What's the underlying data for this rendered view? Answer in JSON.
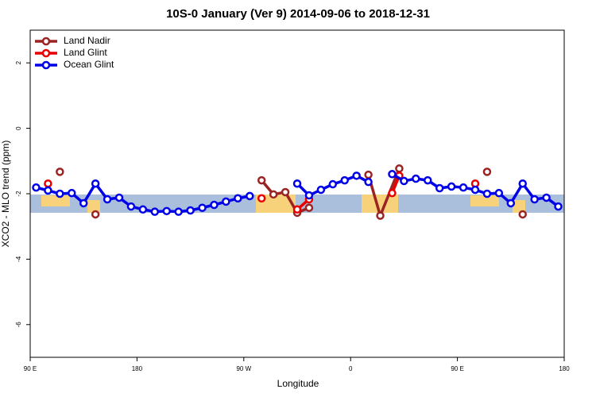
{
  "chart_data": {
    "type": "line",
    "title": "10S-0 January (Ver 9)   2014-09-06 to 2018-12-31",
    "x_label": "Longitude",
    "y_label": "XCO2 - MLO trend (ppm)",
    "xlim": [
      90,
      540
    ],
    "ylim": [
      -7,
      3
    ],
    "xticks": [
      {
        "value": 90,
        "label": "90 E"
      },
      180,
      {
        "value": 270,
        "label": "90 W"
      },
      {
        "value": 360,
        "label": "0"
      },
      {
        "value": 450,
        "label": "90 E"
      },
      {
        "value": 540,
        "label": "180"
      }
    ],
    "yticks": [
      -6,
      -4,
      -2,
      0,
      2
    ],
    "legend": "top-left",
    "series": [
      {
        "name": "Land Nadir",
        "color": "#9b2423",
        "x": [
          115,
          130,
          145,
          200,
          285,
          295,
          305,
          315,
          325,
          350,
          375,
          385,
          401,
          440,
          475,
          490,
          505
        ],
        "values": [
          -1.33,
          null,
          -2.63,
          null,
          -1.59,
          -2.02,
          -1.95,
          -2.58,
          -2.43,
          null,
          -1.42,
          -2.67,
          -1.23,
          null,
          -1.33,
          null,
          -2.63
        ]
      },
      {
        "name": "Land Glint",
        "color": "#e80000",
        "x": [
          105,
          200,
          285,
          300,
          315,
          325,
          360,
          395,
          401,
          430,
          465
        ],
        "values": [
          -1.69,
          null,
          -2.14,
          null,
          -2.48,
          -2.17,
          null,
          -1.98,
          -1.45,
          null,
          -1.69
        ]
      },
      {
        "name": "Ocean Glint",
        "color": "#0000e8",
        "x": [
          95,
          105,
          115,
          125,
          135,
          145,
          155,
          165,
          175,
          185,
          195,
          205,
          215,
          225,
          235,
          245,
          255,
          265,
          275,
          295,
          315,
          325,
          335,
          345,
          355,
          365,
          375,
          385,
          395,
          405,
          415,
          425,
          435,
          445,
          455,
          465,
          475,
          485,
          495,
          505,
          515,
          525,
          535
        ],
        "values": [
          -1.81,
          -1.9,
          -2.0,
          -1.98,
          -2.29,
          -1.69,
          -2.17,
          -2.12,
          -2.39,
          -2.48,
          -2.55,
          -2.53,
          -2.55,
          -2.51,
          -2.43,
          -2.34,
          -2.24,
          -2.14,
          -2.07,
          null,
          -1.69,
          -2.05,
          -1.88,
          -1.71,
          -1.59,
          -1.45,
          -1.64,
          null,
          -1.4,
          -1.61,
          -1.54,
          -1.59,
          -1.83,
          -1.78,
          -1.81,
          -1.88,
          -2.0,
          -1.98,
          -2.29,
          -1.69,
          -2.17,
          -2.12,
          -2.39
        ]
      }
    ]
  }
}
